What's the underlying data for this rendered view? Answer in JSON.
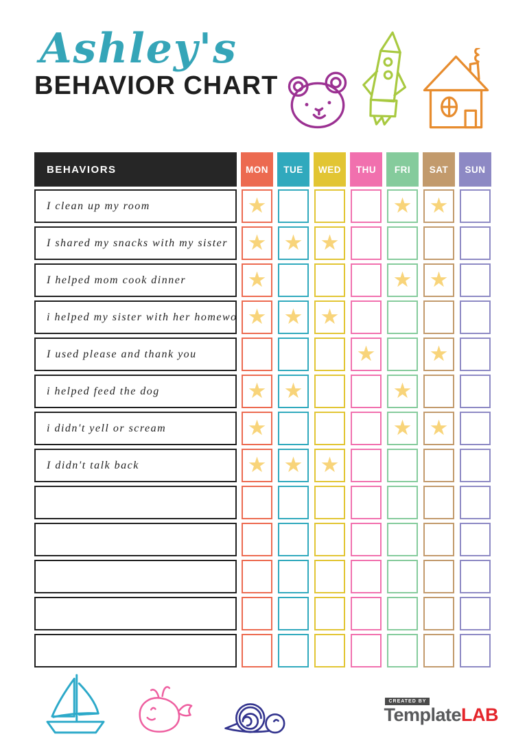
{
  "title": {
    "name_line": "Ashley's",
    "chart_line": "BEHAVIOR CHART"
  },
  "decorations": {
    "top": [
      "bear-icon",
      "rocket-icon",
      "house-icon"
    ],
    "bottom": [
      "sailboat-icon",
      "whale-icon",
      "snail-icon"
    ]
  },
  "colors": {
    "title_script": "#35A5B8",
    "title_main": "#1E1E1E",
    "behaviors_header_bg": "#262626",
    "star": "#F8D47A",
    "bear": "#9B3192",
    "rocket": "#A8C940",
    "house": "#E78C2E",
    "sailboat": "#2CA9C9",
    "whale": "#EE5FA0",
    "snail": "#33348E"
  },
  "table": {
    "behaviors_header": "BEHAVIORS",
    "star_glyph": "★",
    "days": [
      {
        "label": "MON",
        "color": "#EC6A50"
      },
      {
        "label": "TUE",
        "color": "#30A9BD"
      },
      {
        "label": "WED",
        "color": "#E2C533"
      },
      {
        "label": "THU",
        "color": "#F170AE"
      },
      {
        "label": "FRI",
        "color": "#85CB9C"
      },
      {
        "label": "SAT",
        "color": "#C29A6C"
      },
      {
        "label": "SUN",
        "color": "#8D89C4"
      }
    ],
    "rows": [
      {
        "behavior": "I clean up my room",
        "stars": [
          "MON",
          "FRI",
          "SAT"
        ]
      },
      {
        "behavior": "I shared my snacks with my sister",
        "stars": [
          "MON",
          "TUE",
          "WED"
        ]
      },
      {
        "behavior": "I helped mom cook dinner",
        "stars": [
          "MON",
          "FRI",
          "SAT"
        ]
      },
      {
        "behavior": "i helped my sister with her homework",
        "stars": [
          "MON",
          "TUE",
          "WED"
        ]
      },
      {
        "behavior": "I used please and thank you",
        "stars": [
          "THU",
          "SAT"
        ]
      },
      {
        "behavior": "i helped feed the dog",
        "stars": [
          "MON",
          "TUE",
          "FRI"
        ]
      },
      {
        "behavior": "i didn't yell or scream",
        "stars": [
          "MON",
          "FRI",
          "SAT"
        ]
      },
      {
        "behavior": "I didn't talk back",
        "stars": [
          "MON",
          "TUE",
          "WED"
        ]
      },
      {
        "behavior": "",
        "stars": []
      },
      {
        "behavior": "",
        "stars": []
      },
      {
        "behavior": "",
        "stars": []
      },
      {
        "behavior": "",
        "stars": []
      },
      {
        "behavior": "",
        "stars": []
      }
    ]
  },
  "branding": {
    "created_by": "CREATED BY",
    "brand_first": "Template",
    "brand_last": "LAB",
    "brand_first_color": "#58595B",
    "brand_last_color": "#E4252B"
  }
}
